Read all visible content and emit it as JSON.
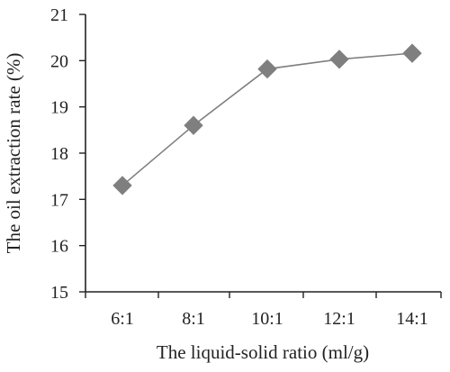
{
  "chart_data": {
    "type": "line",
    "categories": [
      "6:1",
      "8:1",
      "10:1",
      "12:1",
      "14:1"
    ],
    "series": [
      {
        "values": [
          17.3,
          18.6,
          19.82,
          20.03,
          20.16
        ],
        "marker": "diamond"
      }
    ],
    "xlabel": "The liquid-solid ratio (ml/g)",
    "ylabel": "The oil extraction rate (%)",
    "ylim": [
      15,
      21
    ],
    "yticks": [
      15,
      16,
      17,
      18,
      19,
      20,
      21
    ],
    "grid": false,
    "colors": {
      "line": "#7f7f7f",
      "marker": "#7f7f7f",
      "axis": "#222222",
      "text": "#222222"
    }
  }
}
